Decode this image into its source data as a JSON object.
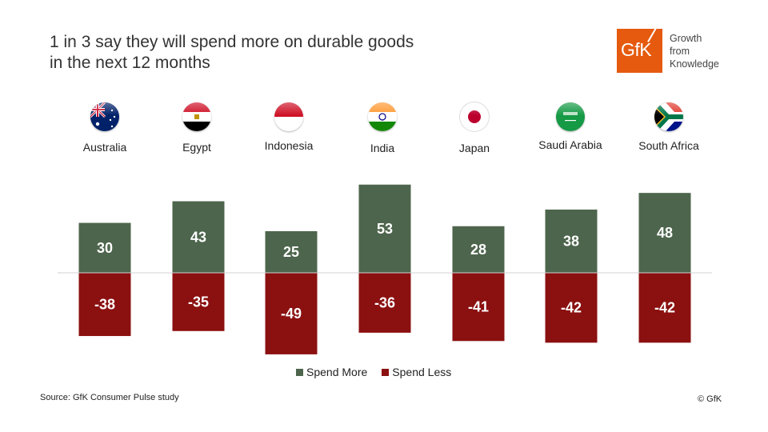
{
  "header": {
    "title_line1": "1 in 3 say they will spend more on durable goods",
    "title_line2": "in the next 12 months"
  },
  "logo": {
    "mark": "GfK",
    "tagline": [
      "Growth",
      "from",
      "Knowledge"
    ],
    "brand_color": "#e55a0f"
  },
  "countries": [
    {
      "name": "Australia",
      "flag_icon": "australia-flag-icon"
    },
    {
      "name": "Egypt",
      "flag_icon": "egypt-flag-icon"
    },
    {
      "name": "Indonesia",
      "flag_icon": "indonesia-flag-icon"
    },
    {
      "name": "India",
      "flag_icon": "india-flag-icon"
    },
    {
      "name": "Japan",
      "flag_icon": "japan-flag-icon"
    },
    {
      "name": "Saudi Arabia",
      "flag_icon": "saudi-arabia-flag-icon"
    },
    {
      "name": "South Africa",
      "flag_icon": "south-africa-flag-icon"
    }
  ],
  "chart_data": {
    "type": "bar",
    "title": "1 in 3 say they will spend more on durable goods in the next 12 months",
    "categories": [
      "Australia",
      "Egypt",
      "Indonesia",
      "India",
      "Japan",
      "Saudi Arabia",
      "South Africa"
    ],
    "series": [
      {
        "name": "Spend More",
        "color": "#4d654c",
        "values": [
          30,
          43,
          25,
          53,
          28,
          38,
          48
        ]
      },
      {
        "name": "Spend Less",
        "color": "#8b1010",
        "values": [
          -38,
          -35,
          -49,
          -36,
          -41,
          -42,
          -42
        ]
      }
    ],
    "xlabel": "",
    "ylabel": "",
    "ylim": [
      -55,
      55
    ],
    "grid": false,
    "data_labels": true,
    "legend_position": "bottom"
  },
  "legend": {
    "items": [
      {
        "label": "Spend More",
        "color": "#4d654c"
      },
      {
        "label": "Spend Less",
        "color": "#8b1010"
      }
    ]
  },
  "footer": {
    "source": "Source: GfK Consumer Pulse study",
    "copyright": "© GfK"
  }
}
